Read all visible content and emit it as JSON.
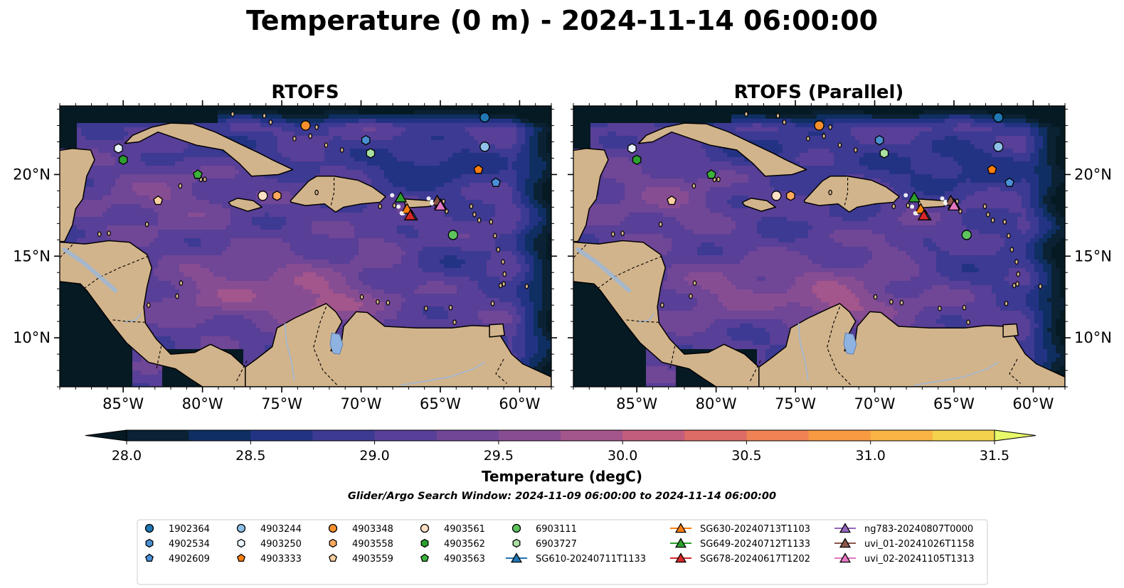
{
  "figure": {
    "title": "Temperature (0 m) - 2024-11-14 06:00:00",
    "search_window": "Glider/Argo Search Window: 2024-11-09 06:00:00 to 2024-11-14 06:00:00"
  },
  "colors": {
    "land": "#d2b48c",
    "lake": "#8fb3e0",
    "river": "#9fb7d6",
    "coast": "#000000"
  },
  "chart_data": {
    "type": "heatmap",
    "panels": [
      {
        "title": "RTOFS",
        "variant": 0
      },
      {
        "title": "RTOFS (Parallel)",
        "variant": 1
      }
    ],
    "extent": {
      "lon": [
        -89,
        -58
      ],
      "lat": [
        7,
        24.2
      ]
    },
    "lon_ticks": [
      -85,
      -80,
      -75,
      -70,
      -65,
      -60
    ],
    "lon_tick_labels": [
      "85°W",
      "80°W",
      "75°W",
      "70°W",
      "65°W",
      "60°W"
    ],
    "lat_ticks": [
      10,
      15,
      20
    ],
    "lat_tick_labels": [
      "10°N",
      "15°N",
      "20°N"
    ],
    "colorbar": {
      "label": "Temperature (degC)",
      "min": 28.0,
      "max": 31.5,
      "step": 0.25,
      "ticks": [
        28.0,
        28.5,
        29.0,
        29.5,
        30.0,
        30.5,
        31.0,
        31.5
      ],
      "tick_labels": [
        "28.0",
        "28.5",
        "29.0",
        "29.5",
        "30.0",
        "30.5",
        "31.0",
        "31.5"
      ],
      "colors": [
        "#0a2233",
        "#0f2f62",
        "#233384",
        "#3d3a93",
        "#583f97",
        "#704697",
        "#874d92",
        "#a3568c",
        "#c35d7d",
        "#dd6b66",
        "#ef8355",
        "#f79a42",
        "#f9b445",
        "#f4d24d"
      ],
      "under_color": "#061a24",
      "over_color": "#e8f96a"
    },
    "argo_floats": [
      {
        "id": "1902364",
        "lon": -62.2,
        "lat": 23.5,
        "marker": "circle",
        "color": "#1f77b4"
      },
      {
        "id": "4902534",
        "lon": -69.7,
        "lat": 22.1,
        "marker": "hexagon",
        "color": "#4a8fd0"
      },
      {
        "id": "4902609",
        "lon": -61.5,
        "lat": 19.5,
        "marker": "pentagon",
        "color": "#4a90d9"
      },
      {
        "id": "4903244",
        "lon": -62.2,
        "lat": 21.7,
        "marker": "circle",
        "color": "#8ec0ea"
      },
      {
        "id": "4903250",
        "lon": -85.3,
        "lat": 21.6,
        "marker": "hexagon",
        "color": "#e8f3fc"
      },
      {
        "id": "4903333",
        "lon": -62.6,
        "lat": 20.3,
        "marker": "pentagon",
        "color": "#ff7f0e"
      },
      {
        "id": "4903348",
        "lon": -73.5,
        "lat": 23.0,
        "marker": "circle",
        "color": "#f7902c"
      },
      {
        "id": "4903558",
        "lon": -75.3,
        "lat": 18.7,
        "marker": "hexagon",
        "color": "#fdaa5e"
      },
      {
        "id": "4903559",
        "lon": -82.8,
        "lat": 18.4,
        "marker": "pentagon",
        "color": "#fdd0a2"
      },
      {
        "id": "4903561",
        "lon": -76.2,
        "lat": 18.7,
        "marker": "circle",
        "color": "#fde0c5"
      },
      {
        "id": "4903562",
        "lon": -85.0,
        "lat": 20.9,
        "marker": "hexagon",
        "color": "#2ca02c"
      },
      {
        "id": "4903563",
        "lon": -80.3,
        "lat": 20.0,
        "marker": "pentagon",
        "color": "#3bb33b"
      },
      {
        "id": "6903111",
        "lon": -64.2,
        "lat": 16.3,
        "marker": "circle",
        "color": "#5ec45e"
      },
      {
        "id": "6903727",
        "lon": -69.4,
        "lat": 21.3,
        "marker": "hexagon",
        "color": "#a8e0a0"
      }
    ],
    "gliders": [
      {
        "id": "SG610-20240711T1133",
        "lon": -66.8,
        "lat": 17.5,
        "color": "#1f77b4"
      },
      {
        "id": "SG630-20240713T1103",
        "lon": -67.1,
        "lat": 17.9,
        "color": "#ff7f0e"
      },
      {
        "id": "SG649-20240712T1133",
        "lon": -67.5,
        "lat": 18.6,
        "color": "#2ca02c"
      },
      {
        "id": "SG678-20240617T1202",
        "lon": -66.9,
        "lat": 17.5,
        "color": "#d62728"
      },
      {
        "id": "ng783-20240807T0000",
        "lon": -65.0,
        "lat": 18.2,
        "color": "#9467bd"
      },
      {
        "id": "uvi_01-20241026T1158",
        "lon": -65.2,
        "lat": 18.4,
        "color": "#8c564b"
      },
      {
        "id": "uvi_02-20241105T1313",
        "lon": -65.0,
        "lat": 18.1,
        "color": "#e377c2"
      }
    ]
  }
}
